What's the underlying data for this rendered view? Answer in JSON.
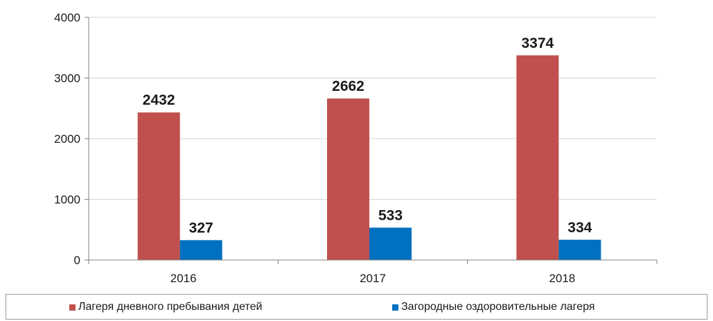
{
  "chart_data": {
    "type": "bar",
    "categories": [
      "2016",
      "2017",
      "2018"
    ],
    "series": [
      {
        "name": "Лагеря дневного пребывания детей",
        "values": [
          2432,
          2662,
          3374
        ],
        "color": "#c0504d"
      },
      {
        "name": "Загородные оздоровительные лагеря",
        "values": [
          327,
          533,
          334
        ],
        "color": "#0070c0"
      }
    ],
    "ylim": [
      0,
      4000
    ],
    "yticks": [
      "0",
      "1000",
      "2000",
      "3000",
      "4000"
    ],
    "grid": true,
    "legend_position": "bottom",
    "data_labels": true
  }
}
